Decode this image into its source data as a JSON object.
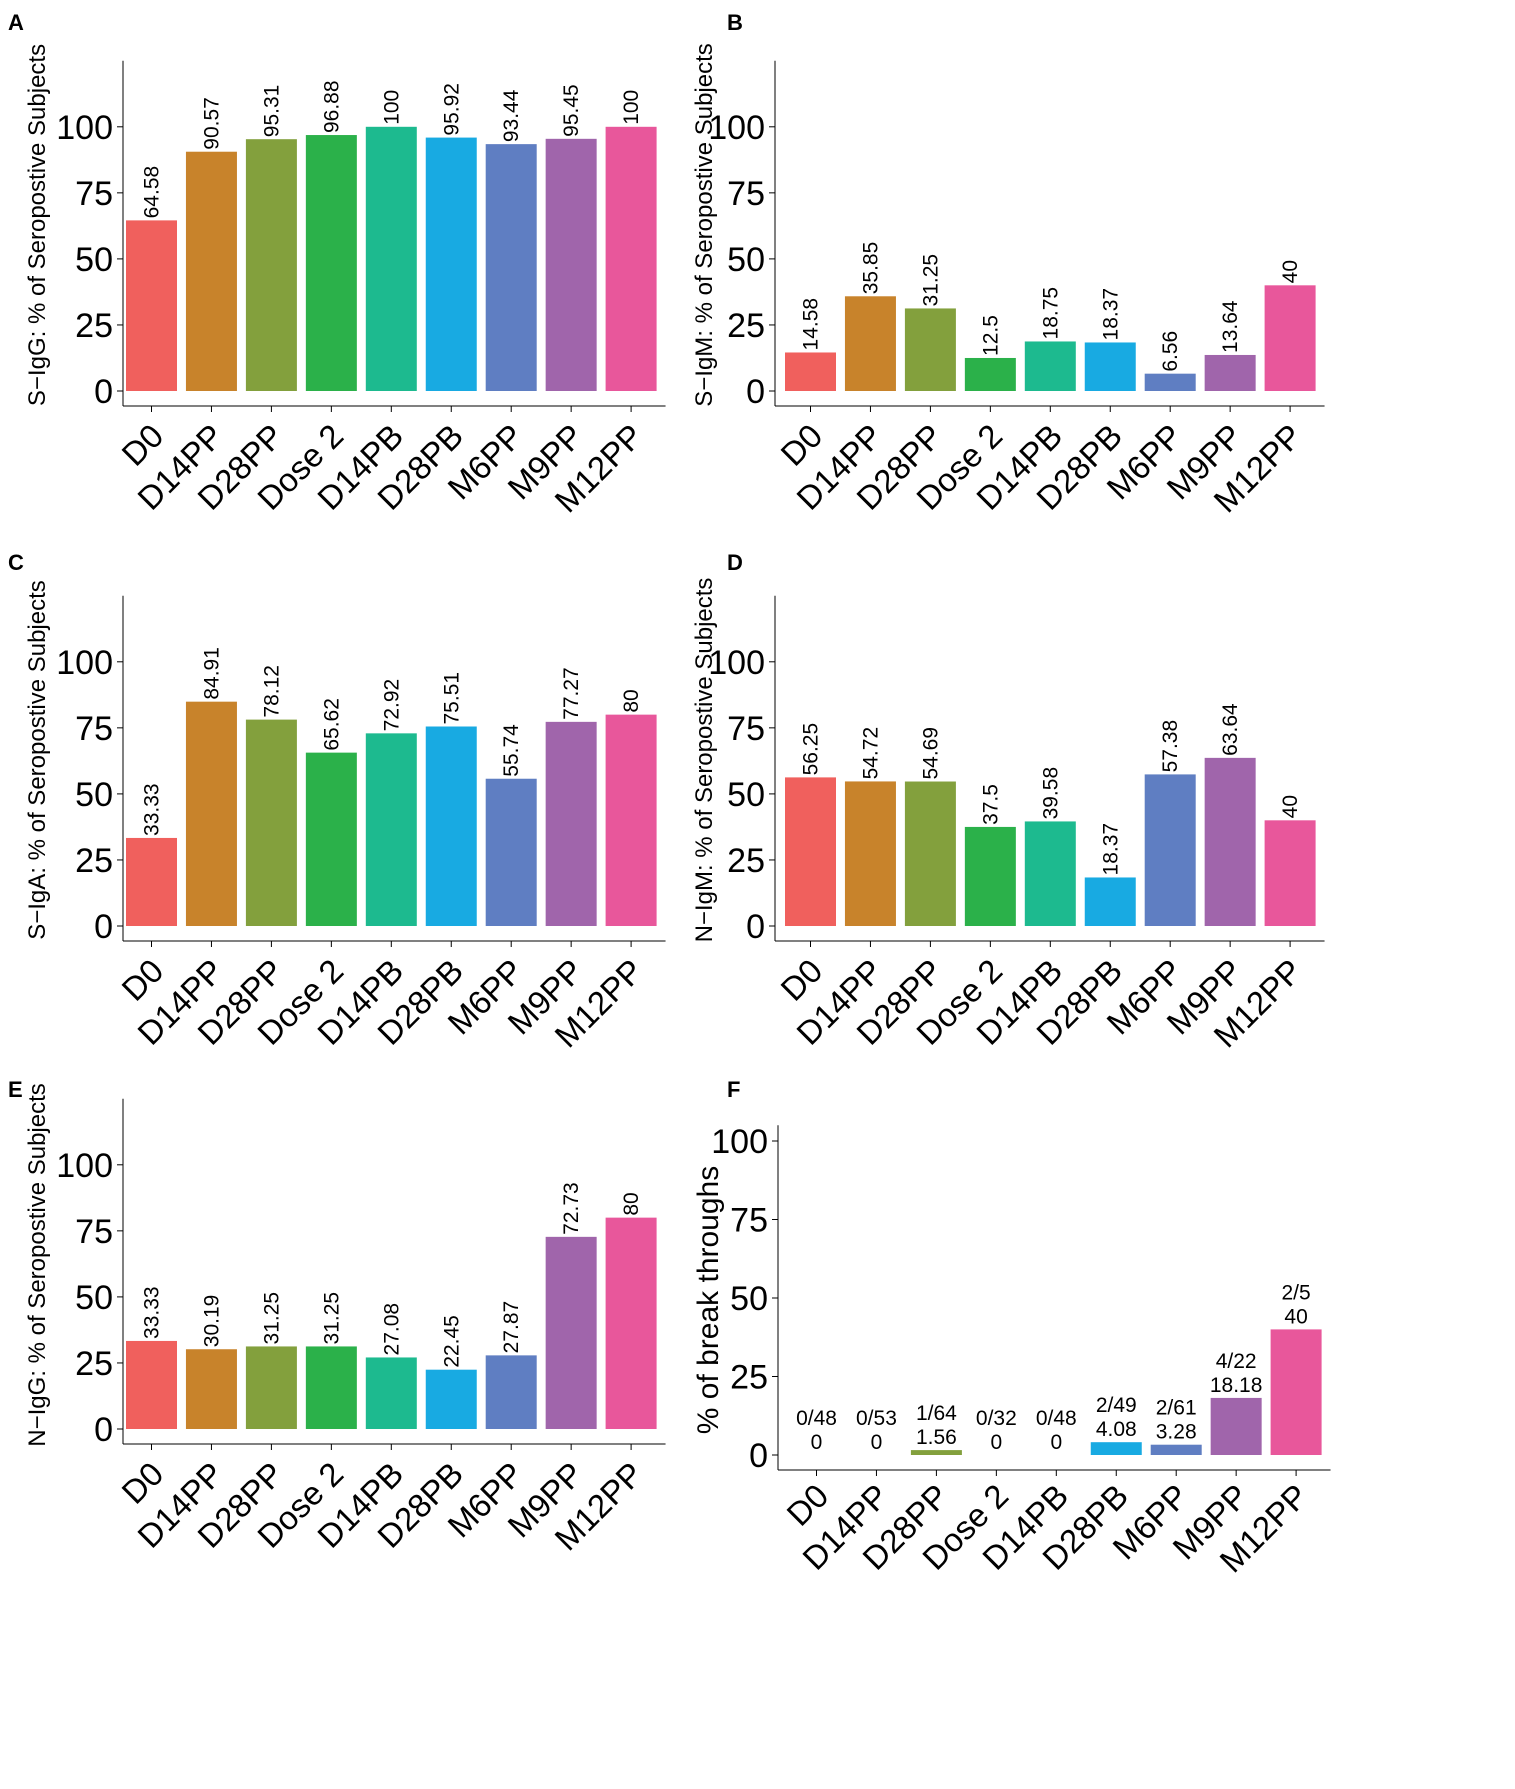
{
  "categories": [
    "D0",
    "D14PP",
    "D28PP",
    "Dose 2",
    "D14PB",
    "D28PB",
    "M6PP",
    "M9PP",
    "M12PP"
  ],
  "colors": [
    "#F0605D",
    "#C8832B",
    "#83A03D",
    "#2BB14A",
    "#1DBA8F",
    "#18AAE2",
    "#5F7EC2",
    "#A065AB",
    "#E8579B"
  ],
  "chart_data": [
    {
      "panel": "A",
      "type": "bar",
      "ylabel": "S−IgG: % of Seropostive Subjects",
      "ylim": [
        0,
        125
      ],
      "yticks": [
        "0",
        "25",
        "50",
        "75",
        "100"
      ],
      "values": [
        64.58,
        90.57,
        95.31,
        96.88,
        100,
        95.92,
        93.44,
        95.45,
        100
      ],
      "labels": [
        "64.58",
        "90.57",
        "95.31",
        "96.88",
        "100",
        "95.92",
        "93.44",
        "95.45",
        "100"
      ]
    },
    {
      "panel": "B",
      "type": "bar",
      "ylabel": "S−IgM: % of Seropostive Subjects",
      "ylim": [
        0,
        125
      ],
      "yticks": [
        "0",
        "25",
        "50",
        "75",
        "100"
      ],
      "values": [
        14.58,
        35.85,
        31.25,
        12.5,
        18.75,
        18.37,
        6.56,
        13.64,
        40
      ],
      "labels": [
        "14.58",
        "35.85",
        "31.25",
        "12.5",
        "18.75",
        "18.37",
        "6.56",
        "13.64",
        "40"
      ]
    },
    {
      "panel": "C",
      "type": "bar",
      "ylabel": "S−IgA: % of Seropostive Subjects",
      "ylim": [
        0,
        125
      ],
      "yticks": [
        "0",
        "25",
        "50",
        "75",
        "100"
      ],
      "values": [
        33.33,
        84.91,
        78.12,
        65.62,
        72.92,
        75.51,
        55.74,
        77.27,
        80
      ],
      "labels": [
        "33.33",
        "84.91",
        "78.12",
        "65.62",
        "72.92",
        "75.51",
        "55.74",
        "77.27",
        "80"
      ]
    },
    {
      "panel": "D",
      "type": "bar",
      "ylabel": "N−IgM: % of Seropostive Subjects",
      "ylim": [
        0,
        125
      ],
      "yticks": [
        "0",
        "25",
        "50",
        "75",
        "100"
      ],
      "values": [
        56.25,
        54.72,
        54.69,
        37.5,
        39.58,
        18.37,
        57.38,
        63.64,
        40
      ],
      "labels": [
        "56.25",
        "54.72",
        "54.69",
        "37.5",
        "39.58",
        "18.37",
        "57.38",
        "63.64",
        "40"
      ]
    },
    {
      "panel": "E",
      "type": "bar",
      "ylabel": "N−IgG: % of Seropostive Subjects",
      "ylim": [
        0,
        125
      ],
      "yticks": [
        "0",
        "25",
        "50",
        "75",
        "100"
      ],
      "values": [
        33.33,
        30.19,
        31.25,
        31.25,
        27.08,
        22.45,
        27.87,
        72.73,
        80
      ],
      "labels": [
        "33.33",
        "30.19",
        "31.25",
        "31.25",
        "27.08",
        "22.45",
        "27.87",
        "72.73",
        "80"
      ]
    },
    {
      "panel": "F",
      "type": "bar",
      "ylabel": "% of break throughs",
      "ylim": [
        0,
        105
      ],
      "yticks": [
        "0",
        "25",
        "50",
        "75",
        "100"
      ],
      "values": [
        0,
        0,
        1.56,
        0,
        0,
        4.08,
        3.28,
        18.18,
        40
      ],
      "labels": [
        "0",
        "0",
        "1.56",
        "0",
        "0",
        "4.08",
        "3.28",
        "18.18",
        "40"
      ],
      "fractions": [
        "0/48",
        "0/53",
        "1/64",
        "0/32",
        "0/48",
        "2/49",
        "2/61",
        "4/22",
        "2/5"
      ]
    }
  ]
}
